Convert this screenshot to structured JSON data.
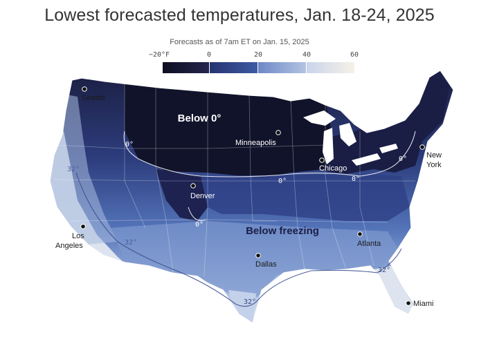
{
  "title": "Lowest forecasted temperatures, Jan. 18-24, 2025",
  "subtitle": "Forecasts as of 7am ET on Jan. 15, 2025",
  "legend": {
    "unit_label": "−20°F",
    "ticks": [
      "0",
      "20",
      "40",
      "60"
    ],
    "bins": [
      {
        "color": "#14142e"
      },
      {
        "color": "#2c3a78"
      },
      {
        "color": "#4f6db8"
      },
      {
        "color": "#a9bde0"
      },
      {
        "color": "#f3eee6"
      }
    ]
  },
  "regions": {
    "below_zero": "Below 0°",
    "below_freezing": "Below freezing"
  },
  "isotherm_labels": {
    "zero": "0°",
    "freezing": "32°"
  },
  "cities": [
    {
      "id": "seattle",
      "name": "Seattle",
      "light": false
    },
    {
      "id": "minneapolis",
      "name": "Minneapolis",
      "light": true
    },
    {
      "id": "chicago",
      "name": "Chicago",
      "light": true
    },
    {
      "id": "new-york",
      "name": "New",
      "name2": "York",
      "light": false
    },
    {
      "id": "denver",
      "name": "Denver",
      "light": true
    },
    {
      "id": "los-angeles",
      "name": "Los",
      "name2": "Angeles",
      "light": false
    },
    {
      "id": "dallas",
      "name": "Dallas",
      "light": false
    },
    {
      "id": "atlanta",
      "name": "Atlanta",
      "light": false
    },
    {
      "id": "miami",
      "name": "Miami",
      "light": false
    }
  ],
  "colors": {
    "very_cold": "#14142e",
    "cold": "#2c3a78",
    "mid": "#4f6db8",
    "cool": "#a9bde0",
    "mild": "#f3eee6"
  }
}
